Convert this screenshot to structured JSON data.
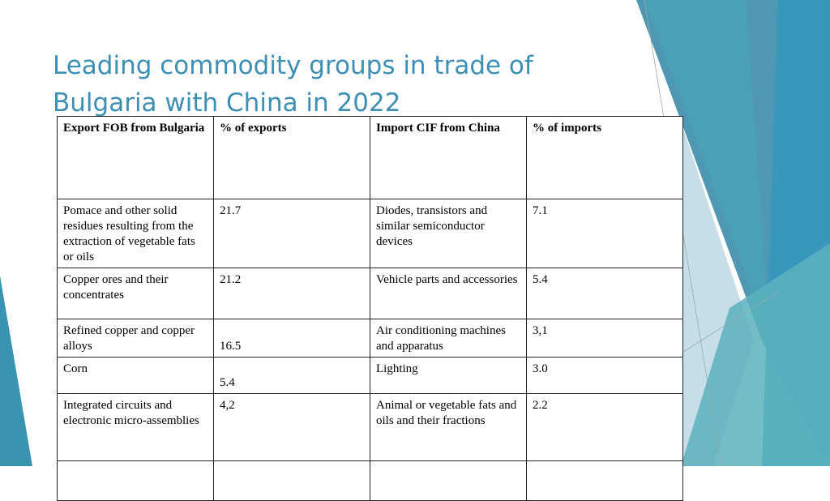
{
  "title": "Leading commodity groups in trade of Bulgaria with China in 2022",
  "table": {
    "header": [
      "Export FOB from Bulgaria",
      "% of exports",
      "Import CIF from China",
      "% of imports"
    ],
    "rows": [
      [
        "Pomace and other solid residues resulting from the extraction of vegetable fats or oils",
        "21.7",
        "Diodes, transistors and similar semiconductor devices",
        "7.1"
      ],
      [
        "Copper ores and their concentrates",
        "21.2",
        "Vehicle parts and accessories",
        "5.4"
      ],
      [
        "Refined copper and copper alloys",
        "16.5",
        "Air conditioning machines and apparatus",
        "3,1"
      ],
      [
        "Corn",
        "5.4",
        "Lighting",
        "3.0"
      ],
      [
        "Integrated circuits and electronic micro-assemblies",
        "4,2",
        "Animal or vegetable fats and oils and their fractions",
        "2.2"
      ]
    ]
  }
}
